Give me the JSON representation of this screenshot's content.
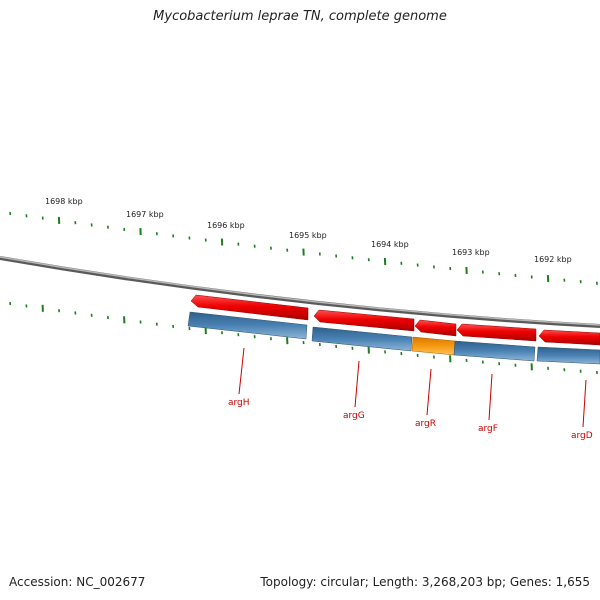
{
  "header": {
    "title": "Mycobacterium leprae TN, complete genome"
  },
  "footer": {
    "accession": "Accession: NC_002677",
    "summary": "Topology: circular; Length: 3,268,203 bp; Genes: 1,655"
  },
  "scale": {
    "labels": [
      "1698 kbp",
      "1697 kbp",
      "1696 kbp",
      "1695 kbp",
      "1694 kbp",
      "1693 kbp",
      "1692 kbp"
    ]
  },
  "genes": [
    {
      "name": "argH"
    },
    {
      "name": "argG"
    },
    {
      "name": "argR"
    },
    {
      "name": "argF"
    },
    {
      "name": "argD"
    }
  ],
  "colors": {
    "backbone": "#7a7a7a",
    "tick": "#1e7d1e",
    "feature_arrow": "#e00000",
    "cds_blue": "#4a82b4",
    "cds_orange": "#f08c00",
    "label_line": "#cc0000"
  }
}
